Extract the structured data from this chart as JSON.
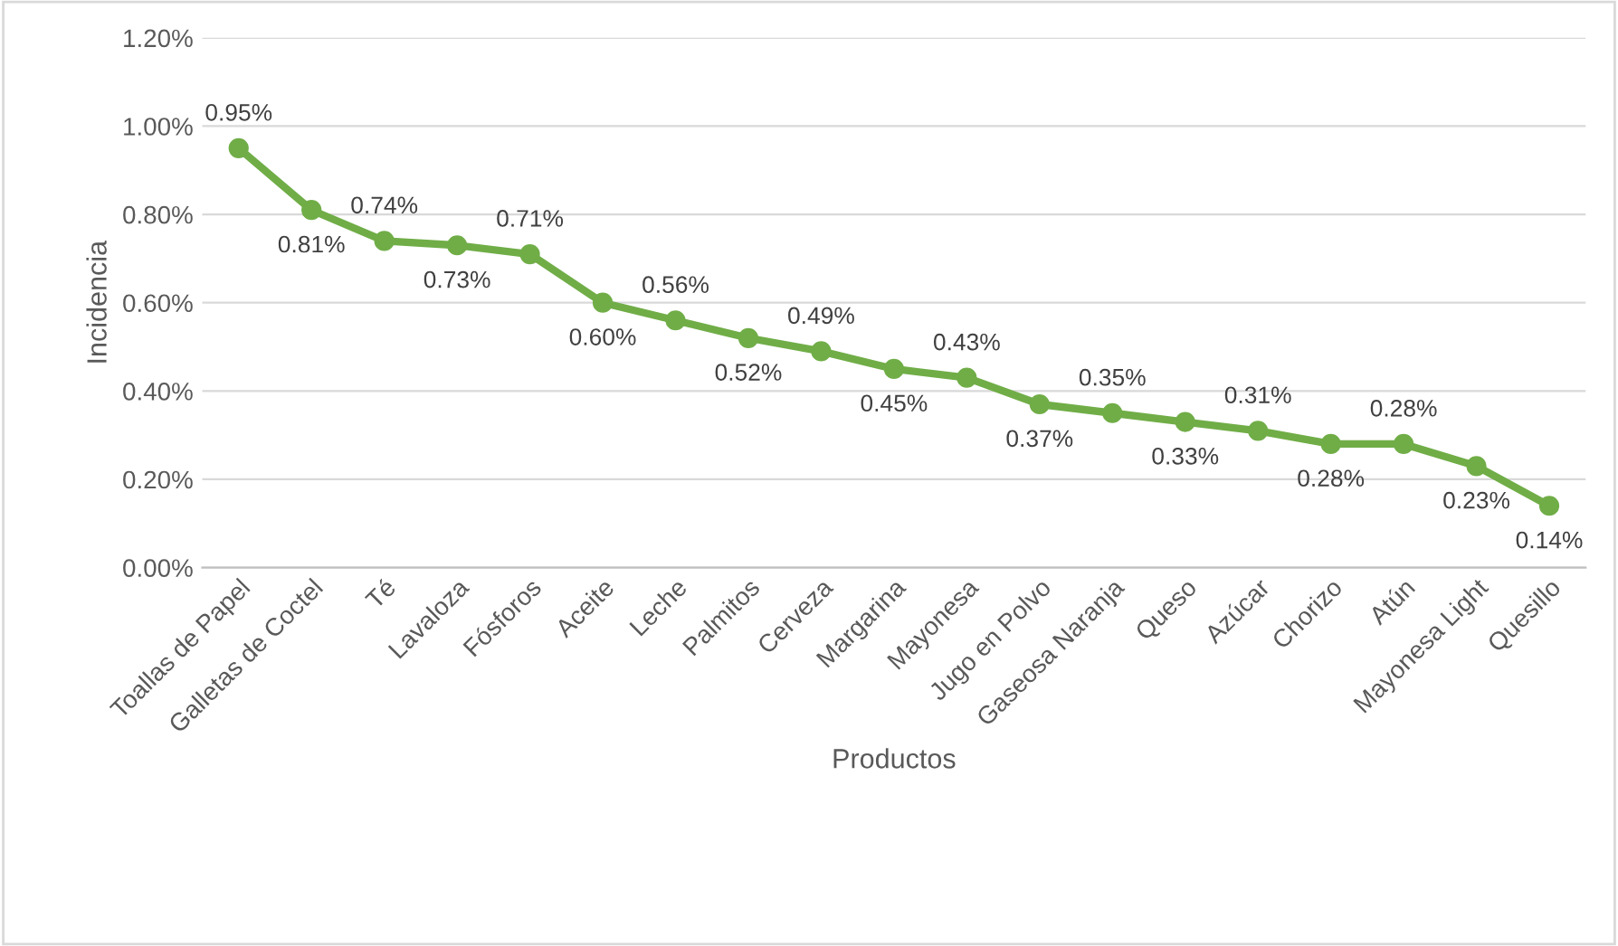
{
  "chart_data": {
    "type": "line",
    "xlabel": "Productos",
    "ylabel": "Incidencia",
    "categories": [
      "Toallas de Papel",
      "Galletas de Coctel",
      "Té",
      "Lavaloza",
      "Fósforos",
      "Aceite",
      "Leche",
      "Palmitos",
      "Cerveza",
      "Margarina",
      "Mayonesa",
      "Jugo en Polvo",
      "Gaseosa Naranja",
      "Queso",
      "Azúcar",
      "Chorizo",
      "Atún",
      "Mayonesa Light",
      "Quesillo"
    ],
    "series": [
      {
        "color": "#70ad47",
        "values": [
          0.95,
          0.81,
          0.74,
          0.73,
          0.71,
          0.6,
          0.56,
          0.52,
          0.49,
          0.45,
          0.43,
          0.37,
          0.35,
          0.33,
          0.31,
          0.28,
          0.28,
          0.23,
          0.14
        ],
        "value_labels": [
          "0.95%",
          "0.81%",
          "0.74%",
          "0.73%",
          "0.71%",
          "0.60%",
          "0.56%",
          "0.52%",
          "0.49%",
          "0.45%",
          "0.43%",
          "0.37%",
          "0.35%",
          "0.33%",
          "0.31%",
          "0.28%",
          "0.28%",
          "0.23%",
          "0.14%"
        ]
      }
    ],
    "ylim": [
      0,
      1.2
    ],
    "yticks": [
      {
        "value": 0,
        "label": "0.00%"
      },
      {
        "value": 0.2,
        "label": "0.20%"
      },
      {
        "value": 0.4,
        "label": "0.40%"
      },
      {
        "value": 0.6,
        "label": "0.60%"
      },
      {
        "value": 0.8,
        "label": "0.80%"
      },
      {
        "value": 1.0,
        "label": "1.00%"
      },
      {
        "value": 1.2,
        "label": "1.20%"
      }
    ],
    "grid": "y",
    "marker": "circle",
    "line_style": "solid",
    "legend": false
  }
}
